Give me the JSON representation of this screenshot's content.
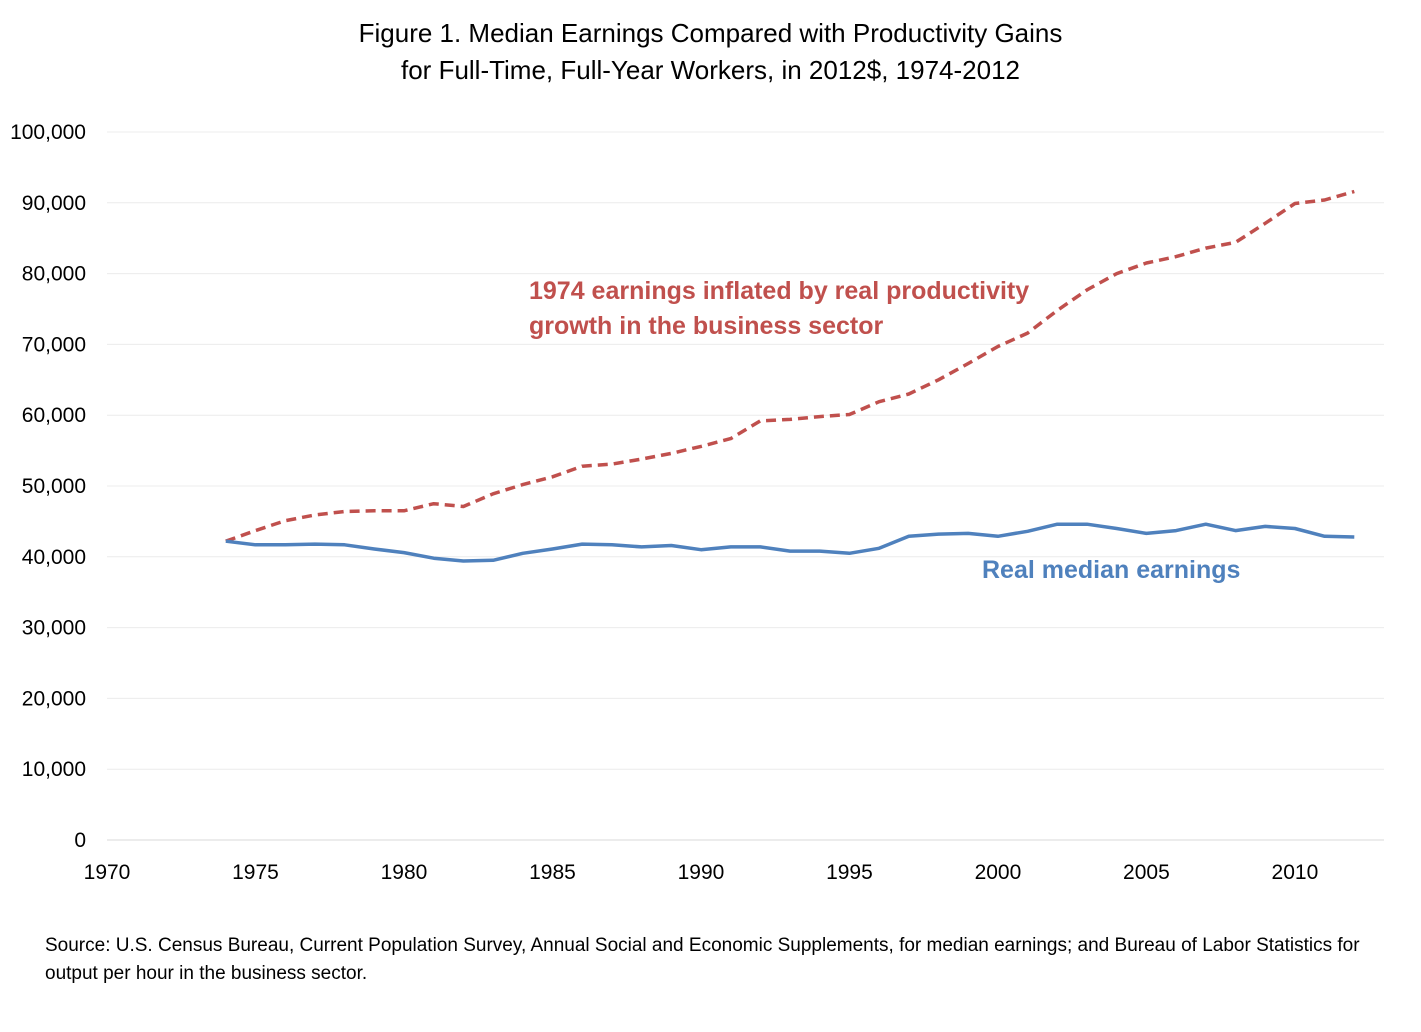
{
  "chart_data": {
    "type": "line",
    "title_line1": "Figure 1. Median Earnings Compared with Productivity Gains",
    "title_line2": "for Full-Time, Full-Year Workers, in 2012$, 1974-2012",
    "xlabel": "",
    "ylabel": "",
    "xlim": [
      1970,
      2013
    ],
    "ylim": [
      0,
      100000
    ],
    "y_ticks": [
      "0",
      "10,000",
      "20,000",
      "30,000",
      "40,000",
      "50,000",
      "60,000",
      "70,000",
      "80,000",
      "90,000",
      "100,000"
    ],
    "x_ticks": [
      "1970",
      "1975",
      "1980",
      "1985",
      "1990",
      "1995",
      "2000",
      "2005",
      "2010"
    ],
    "grid": "horizontal",
    "legend": "none",
    "annotations": {
      "productivity_line1": "1974 earnings inflated by real productivity",
      "productivity_line2": "growth in the business sector",
      "median": "Real median earnings"
    },
    "source": "Source: U.S. Census Bureau, Current Population Survey, Annual Social and Economic Supplements, for median earnings; and Bureau of Labor Statistics for output per hour in the business sector.",
    "x": [
      1974,
      1975,
      1976,
      1977,
      1978,
      1979,
      1980,
      1981,
      1982,
      1983,
      1984,
      1985,
      1986,
      1987,
      1988,
      1989,
      1990,
      1991,
      1992,
      1993,
      1994,
      1995,
      1996,
      1997,
      1998,
      1999,
      2000,
      2001,
      2002,
      2003,
      2004,
      2005,
      2006,
      2007,
      2008,
      2009,
      2010,
      2011,
      2012
    ],
    "series": [
      {
        "key": "productivity",
        "color": "#c0504d",
        "dash": "dashed",
        "values": [
          42200,
          43700,
          45100,
          45900,
          46400,
          46500,
          46500,
          47500,
          47100,
          48900,
          50200,
          51300,
          52800,
          53100,
          53800,
          54600,
          55600,
          56700,
          59200,
          59400,
          59800,
          60100,
          61900,
          63000,
          65000,
          67300,
          69700,
          71600,
          74800,
          77700,
          80000,
          81500,
          82400,
          83600,
          84400,
          87100,
          89900,
          90400,
          91600
        ]
      },
      {
        "key": "median",
        "color": "#4f81bd",
        "dash": "solid",
        "values": [
          42200,
          41700,
          41700,
          41800,
          41700,
          41100,
          40600,
          39800,
          39400,
          39500,
          40500,
          41100,
          41800,
          41700,
          41400,
          41600,
          41000,
          41400,
          41400,
          40800,
          40800,
          40500,
          41200,
          42900,
          43200,
          43300,
          42900,
          43600,
          44600,
          44600,
          44000,
          43300,
          43700,
          44600,
          43700,
          44300,
          44000,
          42900,
          42800
        ]
      }
    ]
  }
}
